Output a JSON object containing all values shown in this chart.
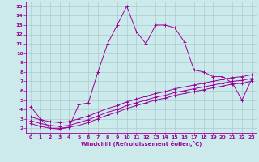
{
  "xlabel": "Windchill (Refroidissement éolien,°C)",
  "bg_color": "#cceaec",
  "grid_color": "#aacccc",
  "line_color": "#990099",
  "xlim": [
    -0.5,
    23.5
  ],
  "ylim": [
    1.5,
    15.5
  ],
  "xticks": [
    0,
    1,
    2,
    3,
    4,
    5,
    6,
    7,
    8,
    9,
    10,
    11,
    12,
    13,
    14,
    15,
    16,
    17,
    18,
    19,
    20,
    21,
    22,
    23
  ],
  "yticks": [
    2,
    3,
    4,
    5,
    6,
    7,
    8,
    9,
    10,
    11,
    12,
    13,
    14,
    15
  ],
  "series1_x": [
    0,
    1,
    2,
    3,
    4,
    5,
    6,
    7,
    8,
    9,
    10,
    11,
    12,
    13,
    14,
    15,
    16,
    17,
    18,
    19,
    20,
    21,
    22,
    23
  ],
  "series1_y": [
    4.3,
    3.0,
    2.0,
    1.9,
    2.1,
    4.5,
    4.7,
    8.0,
    11.0,
    13.0,
    15.0,
    12.3,
    11.0,
    13.0,
    13.0,
    12.7,
    11.2,
    8.2,
    8.0,
    7.5,
    7.5,
    6.8,
    5.0,
    7.2
  ],
  "series2_x": [
    0,
    1,
    2,
    3,
    4,
    5,
    6,
    7,
    8,
    9,
    10,
    11,
    12,
    13,
    14,
    15,
    16,
    17,
    18,
    19,
    20,
    21,
    22,
    23
  ],
  "series2_y": [
    2.5,
    2.2,
    2.0,
    2.0,
    2.1,
    2.3,
    2.6,
    3.0,
    3.4,
    3.7,
    4.1,
    4.4,
    4.7,
    5.0,
    5.2,
    5.5,
    5.7,
    5.9,
    6.1,
    6.3,
    6.5,
    6.7,
    6.8,
    7.0
  ],
  "series3_x": [
    0,
    1,
    2,
    3,
    4,
    5,
    6,
    7,
    8,
    9,
    10,
    11,
    12,
    13,
    14,
    15,
    16,
    17,
    18,
    19,
    20,
    21,
    22,
    23
  ],
  "series3_y": [
    2.8,
    2.5,
    2.3,
    2.2,
    2.3,
    2.6,
    2.9,
    3.3,
    3.7,
    4.0,
    4.4,
    4.7,
    5.0,
    5.3,
    5.5,
    5.8,
    6.0,
    6.2,
    6.4,
    6.6,
    6.8,
    7.0,
    7.1,
    7.3
  ],
  "series4_x": [
    0,
    1,
    2,
    3,
    4,
    5,
    6,
    7,
    8,
    9,
    10,
    11,
    12,
    13,
    14,
    15,
    16,
    17,
    18,
    19,
    20,
    21,
    22,
    23
  ],
  "series4_y": [
    3.2,
    2.9,
    2.7,
    2.6,
    2.7,
    3.0,
    3.3,
    3.7,
    4.1,
    4.4,
    4.8,
    5.1,
    5.4,
    5.7,
    5.9,
    6.2,
    6.4,
    6.6,
    6.8,
    7.0,
    7.2,
    7.4,
    7.5,
    7.7
  ]
}
